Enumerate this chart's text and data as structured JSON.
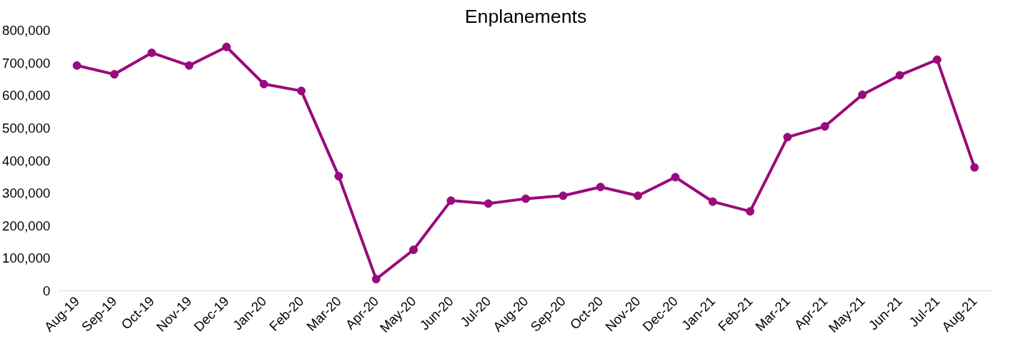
{
  "chart_data": {
    "type": "line",
    "title": "Enplanements",
    "categories": [
      "Aug-19",
      "Sep-19",
      "Oct-19",
      "Nov-19",
      "Dec-19",
      "Jan-20",
      "Feb-20",
      "Mar-20",
      "Apr-20",
      "May-20",
      "Jun-20",
      "Jul-20",
      "Aug-20",
      "Sep-20",
      "Oct-20",
      "Nov-20",
      "Dec-20",
      "Jan-21",
      "Feb-21",
      "Mar-21",
      "Apr-21",
      "May-21",
      "Jun-21",
      "Jul-21",
      "Aug-21"
    ],
    "series": [
      {
        "color": "#990a7c",
        "values": [
          692000,
          665000,
          731000,
          692000,
          749000,
          635000,
          614000,
          352000,
          36000,
          126000,
          277000,
          268000,
          283000,
          292000,
          319000,
          292000,
          349000,
          274000,
          244000,
          472000,
          505000,
          602000,
          662000,
          710000,
          379000
        ]
      }
    ],
    "ylim": [
      0,
      800000
    ],
    "yticks": [
      {
        "value": 0,
        "label": "0"
      },
      {
        "value": 100000,
        "label": "100,000"
      },
      {
        "value": 200000,
        "label": "200,000"
      },
      {
        "value": 300000,
        "label": "300,000"
      },
      {
        "value": 400000,
        "label": "400,000"
      },
      {
        "value": 500000,
        "label": "500,000"
      },
      {
        "value": 600000,
        "label": "600,000"
      },
      {
        "value": 700000,
        "label": "700,000"
      },
      {
        "value": 800000,
        "label": "800,000"
      }
    ],
    "grid": false,
    "marker": "circle",
    "line_style": "solid"
  }
}
